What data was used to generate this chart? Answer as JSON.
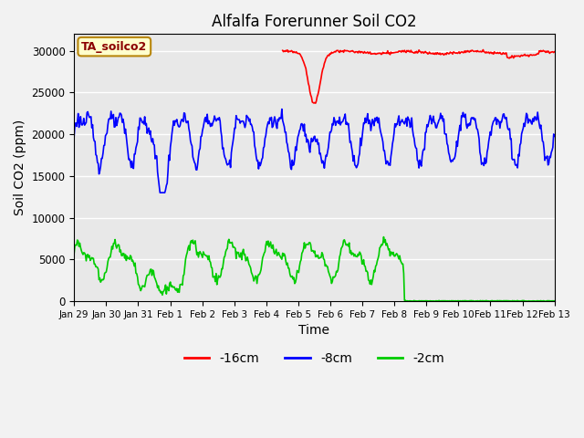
{
  "title": "Alfalfa Forerunner Soil CO2",
  "ylabel": "Soil CO2 (ppm)",
  "xlabel": "Time",
  "legend_label": "TA_soilco2",
  "legend_entries": [
    "-16cm",
    "-8cm",
    "-2cm"
  ],
  "line_colors": [
    "#ff0000",
    "#0000ff",
    "#00cc00"
  ],
  "ylim": [
    0,
    32000
  ],
  "yticks": [
    0,
    5000,
    10000,
    15000,
    20000,
    25000,
    30000
  ],
  "fig_bg_color": "#f2f2f2",
  "plot_bg_color": "#e8e8e8",
  "title_fontsize": 12,
  "axis_fontsize": 10,
  "tick_fontsize": 8.5
}
